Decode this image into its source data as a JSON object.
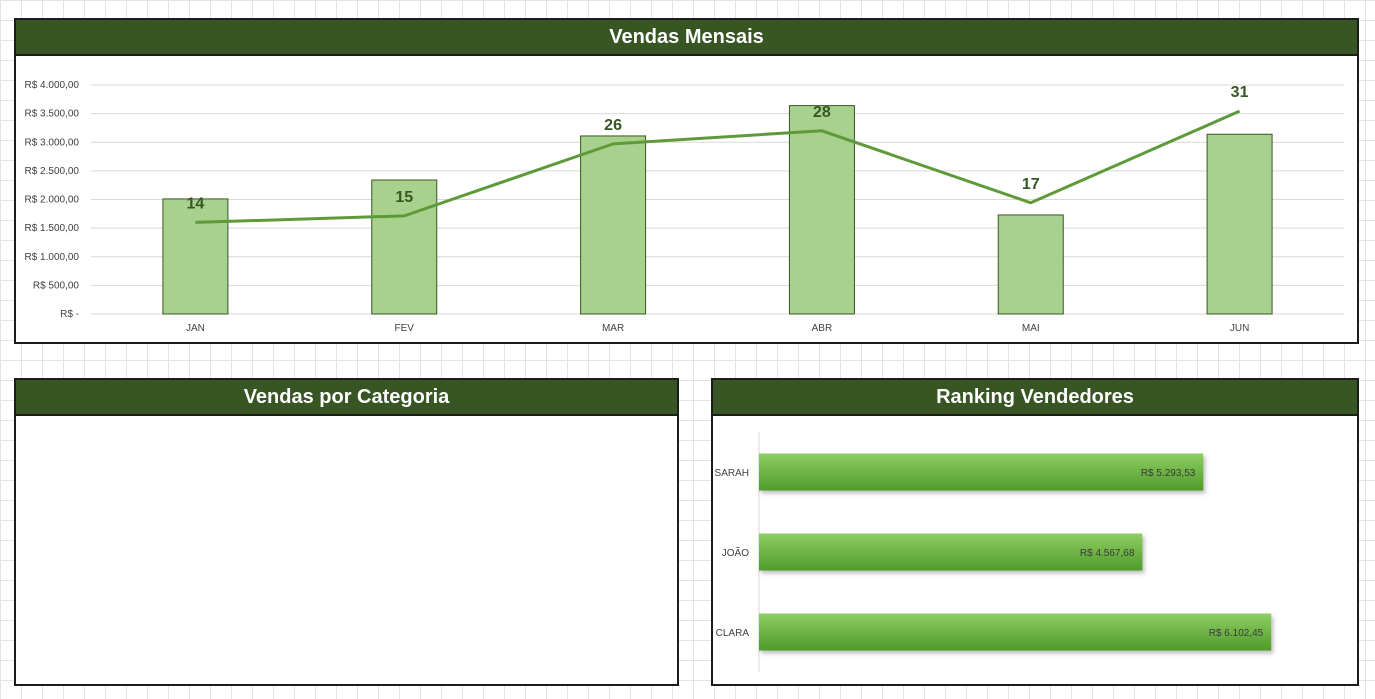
{
  "panels": {
    "monthly_title": "Vendas Mensais",
    "category_title": "Vendas por Categoria",
    "ranking_title": "Ranking Vendedores"
  },
  "colors": {
    "header": "#375623",
    "bar_fill": "#a9d18e",
    "bar_stroke": "#375623",
    "line": "#5e9a3a",
    "hbar_top": "#8fce62",
    "hbar_bottom": "#4f9a2b",
    "label_dark": "#375623"
  },
  "chart_data": [
    {
      "type": "bar",
      "title": "Vendas Mensais",
      "categories": [
        "JAN",
        "FEV",
        "MAR",
        "ABR",
        "MAI",
        "JUN"
      ],
      "series": [
        {
          "type": "bar",
          "values": [
            2010,
            2340,
            3110,
            3640,
            1730,
            3140
          ]
        },
        {
          "type": "line",
          "values": [
            14,
            15,
            26,
            28,
            17,
            31
          ],
          "labels": [
            "14",
            "15",
            "26",
            "28",
            "17",
            "31"
          ]
        }
      ],
      "y_axis_ticks": [
        "R$ -",
        "R$ 500,00",
        "R$ 1.000,00",
        "R$ 1.500,00",
        "R$ 2.000,00",
        "R$ 2.500,00",
        "R$ 3.000,00",
        "R$ 3.500,00",
        "R$ 4.000,00"
      ],
      "ylim": [
        0,
        4000
      ],
      "secondary_ylim": [
        0,
        35
      ],
      "grid": true,
      "legend": "none"
    },
    {
      "type": "bar",
      "orientation": "horizontal",
      "title": "Ranking Vendedores",
      "categories": [
        "SARAH",
        "JOÃO",
        "CLARA"
      ],
      "values": [
        5293.53,
        4567.68,
        6102.45
      ],
      "value_labels": [
        "R$ 5.293,53",
        "R$ 4.567,68",
        "R$ 6.102,45"
      ],
      "xlim": [
        0,
        6600
      ]
    }
  ]
}
